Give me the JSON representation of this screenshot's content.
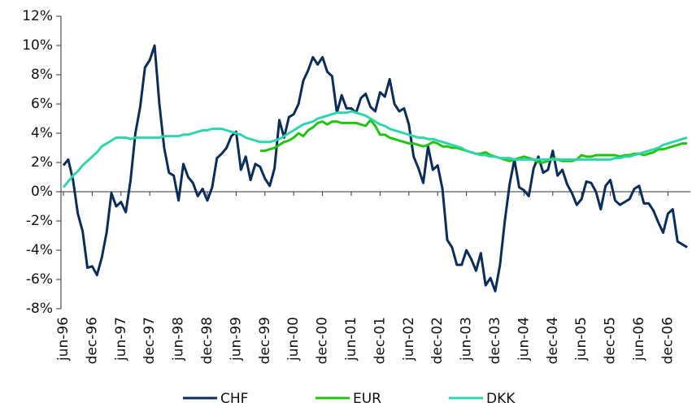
{
  "chart_data": {
    "type": "line",
    "categories": [
      "jun-96",
      null,
      null,
      null,
      null,
      null,
      "dec-96",
      null,
      null,
      null,
      null,
      null,
      "jun-97",
      null,
      null,
      null,
      null,
      null,
      "dec-97",
      null,
      null,
      null,
      null,
      null,
      "jun-98",
      null,
      null,
      null,
      null,
      null,
      "dec-98",
      null,
      null,
      null,
      null,
      null,
      "jun-99",
      null,
      null,
      null,
      null,
      null,
      "dec-99",
      null,
      null,
      null,
      null,
      null,
      "jun-00",
      null,
      null,
      null,
      null,
      null,
      "dec-00",
      null,
      null,
      null,
      null,
      null,
      "jun-01",
      null,
      null,
      null,
      null,
      null,
      "dec-01",
      null,
      null,
      null,
      null,
      null,
      "jun-02",
      null,
      null,
      null,
      null,
      null,
      "dec-02",
      null,
      null,
      null,
      null,
      null,
      "jun-03",
      null,
      null,
      null,
      null,
      null,
      "dec-03",
      null,
      null,
      null,
      null,
      null,
      "jun-04",
      null,
      null,
      null,
      null,
      null,
      "dec-04",
      null,
      null,
      null,
      null,
      null,
      "jun-05",
      null,
      null,
      null,
      null,
      null,
      "dec-05",
      null,
      null,
      null,
      null,
      null,
      "jun-06",
      null,
      null,
      null,
      null,
      null,
      "dec-06",
      null,
      null,
      null,
      null
    ],
    "series": [
      {
        "name": "CHF",
        "color": "#0b2d5c",
        "values": [
          1.8,
          2.2,
          0.8,
          -1.5,
          -2.7,
          -5.2,
          -5.1,
          -5.7,
          -4.5,
          -2.8,
          -0.1,
          -1.0,
          -0.7,
          -1.4,
          0.8,
          4.0,
          5.8,
          8.5,
          9.0,
          10.0,
          6.0,
          3.0,
          1.3,
          1.1,
          -0.6,
          1.9,
          1.0,
          0.6,
          -0.3,
          0.2,
          -0.6,
          0.3,
          2.3,
          2.6,
          3.0,
          3.8,
          4.1,
          1.5,
          2.4,
          0.8,
          1.9,
          1.7,
          0.9,
          0.4,
          1.6,
          4.9,
          3.7,
          5.1,
          5.3,
          6.0,
          7.6,
          8.3,
          9.2,
          8.7,
          9.2,
          8.2,
          7.9,
          5.4,
          6.6,
          5.7,
          5.7,
          5.4,
          6.4,
          6.7,
          5.8,
          5.5,
          6.8,
          6.5,
          7.7,
          6.0,
          5.5,
          5.7,
          4.6,
          2.4,
          1.6,
          0.6,
          3.1,
          1.5,
          1.8,
          0.2,
          -3.3,
          -3.8,
          -5.0,
          -5.0,
          -4.0,
          -4.6,
          -5.4,
          -4.2,
          -6.4,
          -5.9,
          -6.8,
          -5.0,
          -2.0,
          0.5,
          2.2,
          0.3,
          0.1,
          -0.3,
          1.6,
          2.4,
          1.3,
          1.5,
          2.8,
          1.1,
          1.5,
          0.5,
          -0.1,
          -0.9,
          -0.5,
          0.7,
          0.6,
          0.0,
          -1.2,
          0.4,
          0.8,
          -0.6,
          -0.9,
          -0.7,
          -0.5,
          0.2,
          0.4,
          -0.8,
          -0.8,
          -1.3,
          -2.1,
          -2.8,
          -1.5,
          -1.2,
          -3.4,
          -3.6,
          -3.8
        ]
      },
      {
        "name": "EUR",
        "color": "#22c40f",
        "values": [
          null,
          null,
          null,
          null,
          null,
          null,
          null,
          null,
          null,
          null,
          null,
          null,
          null,
          null,
          null,
          null,
          null,
          null,
          null,
          null,
          null,
          null,
          null,
          null,
          null,
          null,
          null,
          null,
          null,
          null,
          null,
          null,
          null,
          null,
          null,
          null,
          null,
          null,
          null,
          null,
          null,
          2.8,
          2.8,
          2.9,
          3.0,
          3.2,
          3.4,
          3.5,
          3.7,
          4.0,
          3.8,
          4.2,
          4.4,
          4.7,
          4.8,
          4.6,
          4.8,
          4.8,
          4.7,
          4.7,
          4.7,
          4.7,
          4.6,
          4.5,
          4.9,
          4.5,
          3.9,
          3.9,
          3.7,
          3.6,
          3.5,
          3.4,
          3.3,
          3.3,
          3.2,
          3.1,
          3.2,
          3.4,
          3.3,
          3.1,
          3.1,
          3.0,
          3.0,
          2.9,
          2.8,
          2.7,
          2.6,
          2.6,
          2.7,
          2.5,
          2.4,
          2.3,
          2.2,
          2.1,
          2.2,
          2.3,
          2.4,
          2.3,
          2.2,
          2.0,
          2.0,
          2.1,
          2.3,
          2.2,
          2.1,
          2.1,
          2.1,
          2.2,
          2.5,
          2.4,
          2.4,
          2.5,
          2.5,
          2.5,
          2.5,
          2.5,
          2.4,
          2.5,
          2.5,
          2.6,
          2.6,
          2.5,
          2.6,
          2.7,
          2.9,
          2.9,
          3.0,
          3.1,
          3.2,
          3.3,
          3.3
        ]
      },
      {
        "name": "DKK",
        "color": "#2fd5ac",
        "values": [
          0.3,
          0.7,
          1.1,
          1.4,
          1.8,
          2.1,
          2.4,
          2.7,
          3.1,
          3.3,
          3.5,
          3.7,
          3.7,
          3.7,
          3.6,
          3.7,
          3.7,
          3.7,
          3.7,
          3.7,
          3.7,
          3.8,
          3.8,
          3.8,
          3.8,
          3.9,
          3.9,
          4.0,
          4.1,
          4.2,
          4.2,
          4.3,
          4.3,
          4.3,
          4.2,
          4.1,
          4.0,
          3.9,
          3.7,
          3.6,
          3.5,
          3.4,
          3.4,
          3.4,
          3.5,
          3.6,
          3.8,
          4.0,
          4.2,
          4.4,
          4.6,
          4.7,
          4.8,
          5.0,
          5.1,
          5.2,
          5.3,
          5.4,
          5.4,
          5.4,
          5.5,
          5.4,
          5.3,
          5.2,
          5.0,
          4.8,
          4.6,
          4.5,
          4.3,
          4.2,
          4.1,
          4.0,
          3.9,
          3.8,
          3.7,
          3.7,
          3.6,
          3.6,
          3.5,
          3.4,
          3.3,
          3.2,
          3.1,
          3.0,
          2.8,
          2.7,
          2.6,
          2.5,
          2.5,
          2.4,
          2.4,
          2.3,
          2.3,
          2.3,
          2.2,
          2.2,
          2.2,
          2.2,
          2.2,
          2.2,
          2.2,
          2.2,
          2.2,
          2.2,
          2.2,
          2.2,
          2.2,
          2.2,
          2.2,
          2.2,
          2.2,
          2.2,
          2.2,
          2.2,
          2.2,
          2.3,
          2.3,
          2.4,
          2.4,
          2.5,
          2.6,
          2.7,
          2.8,
          2.9,
          3.0,
          3.2,
          3.3,
          3.4,
          3.5,
          3.6,
          3.7
        ]
      }
    ],
    "ylim": [
      -8,
      12
    ],
    "yticks": [
      {
        "value": -8,
        "label": "-8%"
      },
      {
        "value": -6,
        "label": "-6%"
      },
      {
        "value": -4,
        "label": "-4%"
      },
      {
        "value": -2,
        "label": "-2%"
      },
      {
        "value": 0,
        "label": "0%"
      },
      {
        "value": 2,
        "label": "2%"
      },
      {
        "value": 4,
        "label": "4%"
      },
      {
        "value": 6,
        "label": "6%"
      },
      {
        "value": 8,
        "label": "8%"
      },
      {
        "value": 10,
        "label": "10%"
      },
      {
        "value": 12,
        "label": "12%"
      }
    ],
    "legend": "bottom"
  }
}
